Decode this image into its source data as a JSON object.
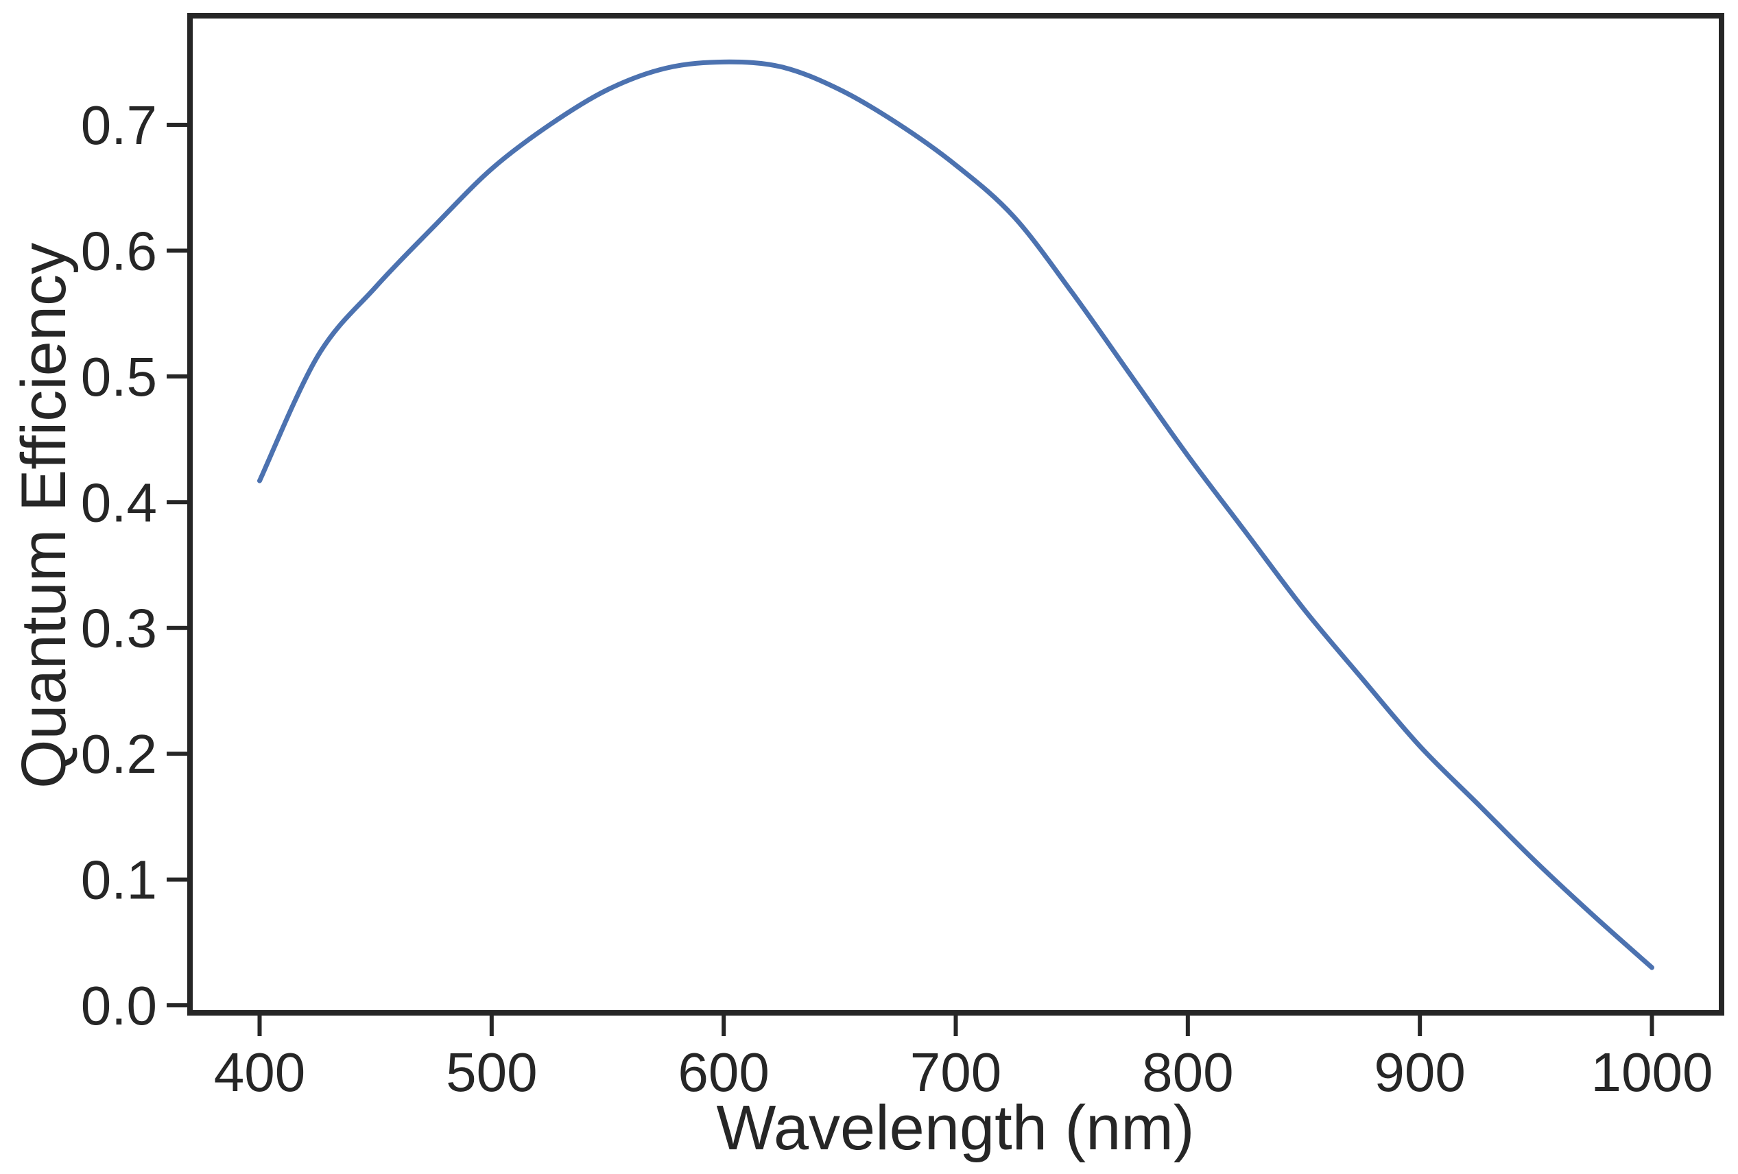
{
  "chart_data": {
    "type": "line",
    "title": "",
    "xlabel": "Wavelength (nm)",
    "ylabel": "Quantum Efficiency",
    "x": [
      400,
      425,
      450,
      475,
      500,
      525,
      550,
      575,
      600,
      625,
      650,
      675,
      700,
      725,
      750,
      775,
      800,
      825,
      850,
      875,
      900,
      925,
      950,
      975,
      1000
    ],
    "y": [
      0.417,
      0.516,
      0.571,
      0.619,
      0.665,
      0.7,
      0.728,
      0.745,
      0.75,
      0.746,
      0.728,
      0.701,
      0.668,
      0.627,
      0.567,
      0.502,
      0.437,
      0.376,
      0.315,
      0.26,
      0.206,
      0.16,
      0.114,
      0.071,
      0.03
    ],
    "xlim": [
      370,
      1030
    ],
    "ylim": [
      -0.006,
      0.7867
    ],
    "xticks": [
      400,
      500,
      600,
      700,
      800,
      900,
      1000
    ],
    "yticks": [
      0.0,
      0.1,
      0.2,
      0.3,
      0.4,
      0.5,
      0.6,
      0.7
    ],
    "ytick_decimals": 1,
    "grid": false,
    "legend": "none",
    "line_color": "#4C72B0",
    "axis_color": "#262626"
  }
}
